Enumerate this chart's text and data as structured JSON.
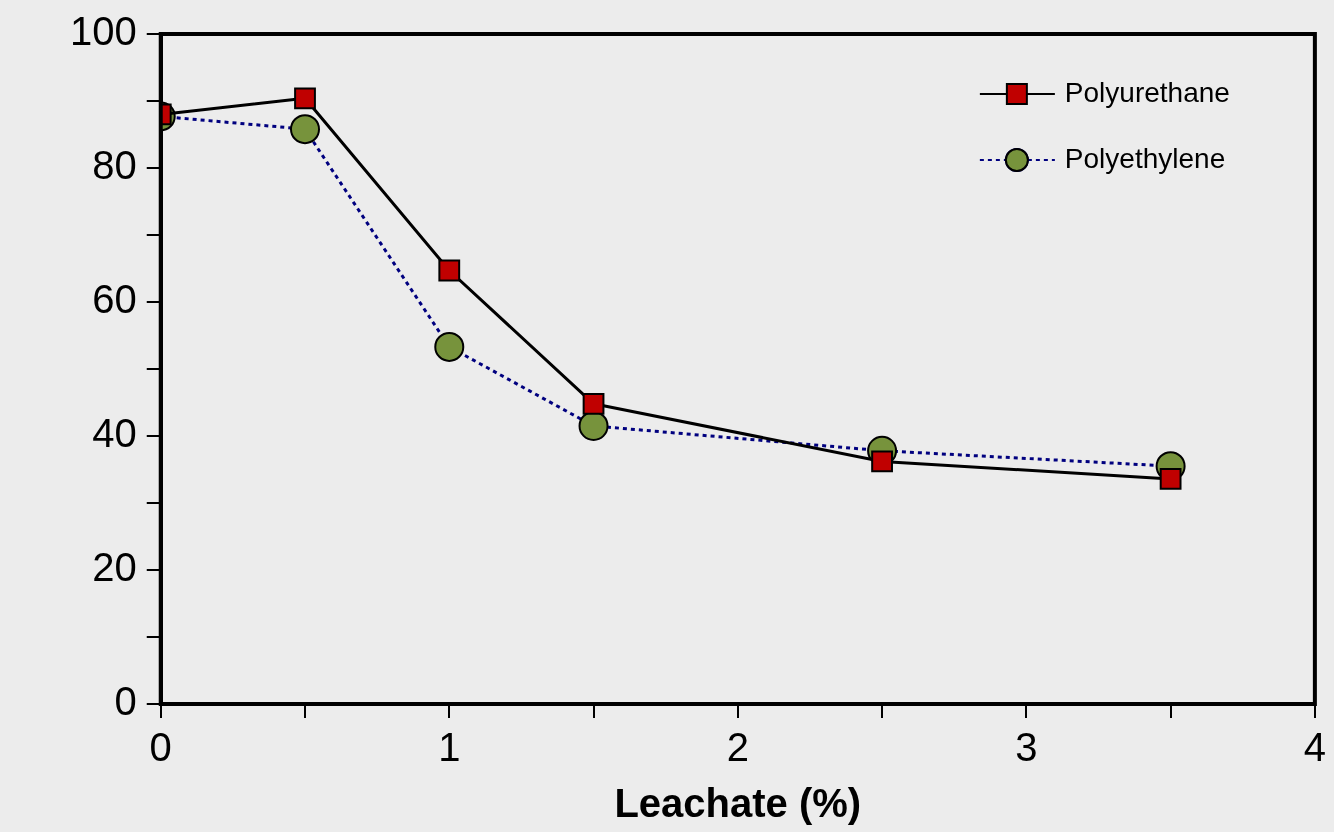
{
  "chart_data": {
    "type": "line",
    "xlabel": "Leachate (%)",
    "xlim": [
      0,
      4
    ],
    "xticks": [
      0,
      {
        "value": 0.5,
        "label": null
      },
      1,
      {
        "value": 1.5,
        "label": null
      },
      2,
      {
        "value": 2.5,
        "label": null
      },
      3,
      {
        "value": 3.5,
        "label": null
      },
      4
    ],
    "ylim": [
      0,
      100
    ],
    "yticks": [
      0,
      {
        "value": 10,
        "label": null
      },
      20,
      {
        "value": 30,
        "label": null
      },
      40,
      {
        "value": 50,
        "label": null
      },
      60,
      {
        "value": 70,
        "label": null
      },
      80,
      {
        "value": 90,
        "label": null
      },
      100
    ],
    "x": [
      0,
      0.5,
      1,
      1.5,
      2.5,
      3.5
    ],
    "series": [
      {
        "name": "Polyurethane",
        "color": "#c00000",
        "marker": "square",
        "line_style": "solid",
        "values": [
          88,
          90.4,
          64.7,
          44.8,
          36.2,
          33.6
        ]
      },
      {
        "name": "Polyethylene",
        "color": "#77933c",
        "marker": "circle",
        "line_style": "dotted",
        "values": [
          87.7,
          85.8,
          53.3,
          41.5,
          37.8,
          35.5
        ]
      }
    ],
    "grid": false,
    "legend": "top right"
  }
}
